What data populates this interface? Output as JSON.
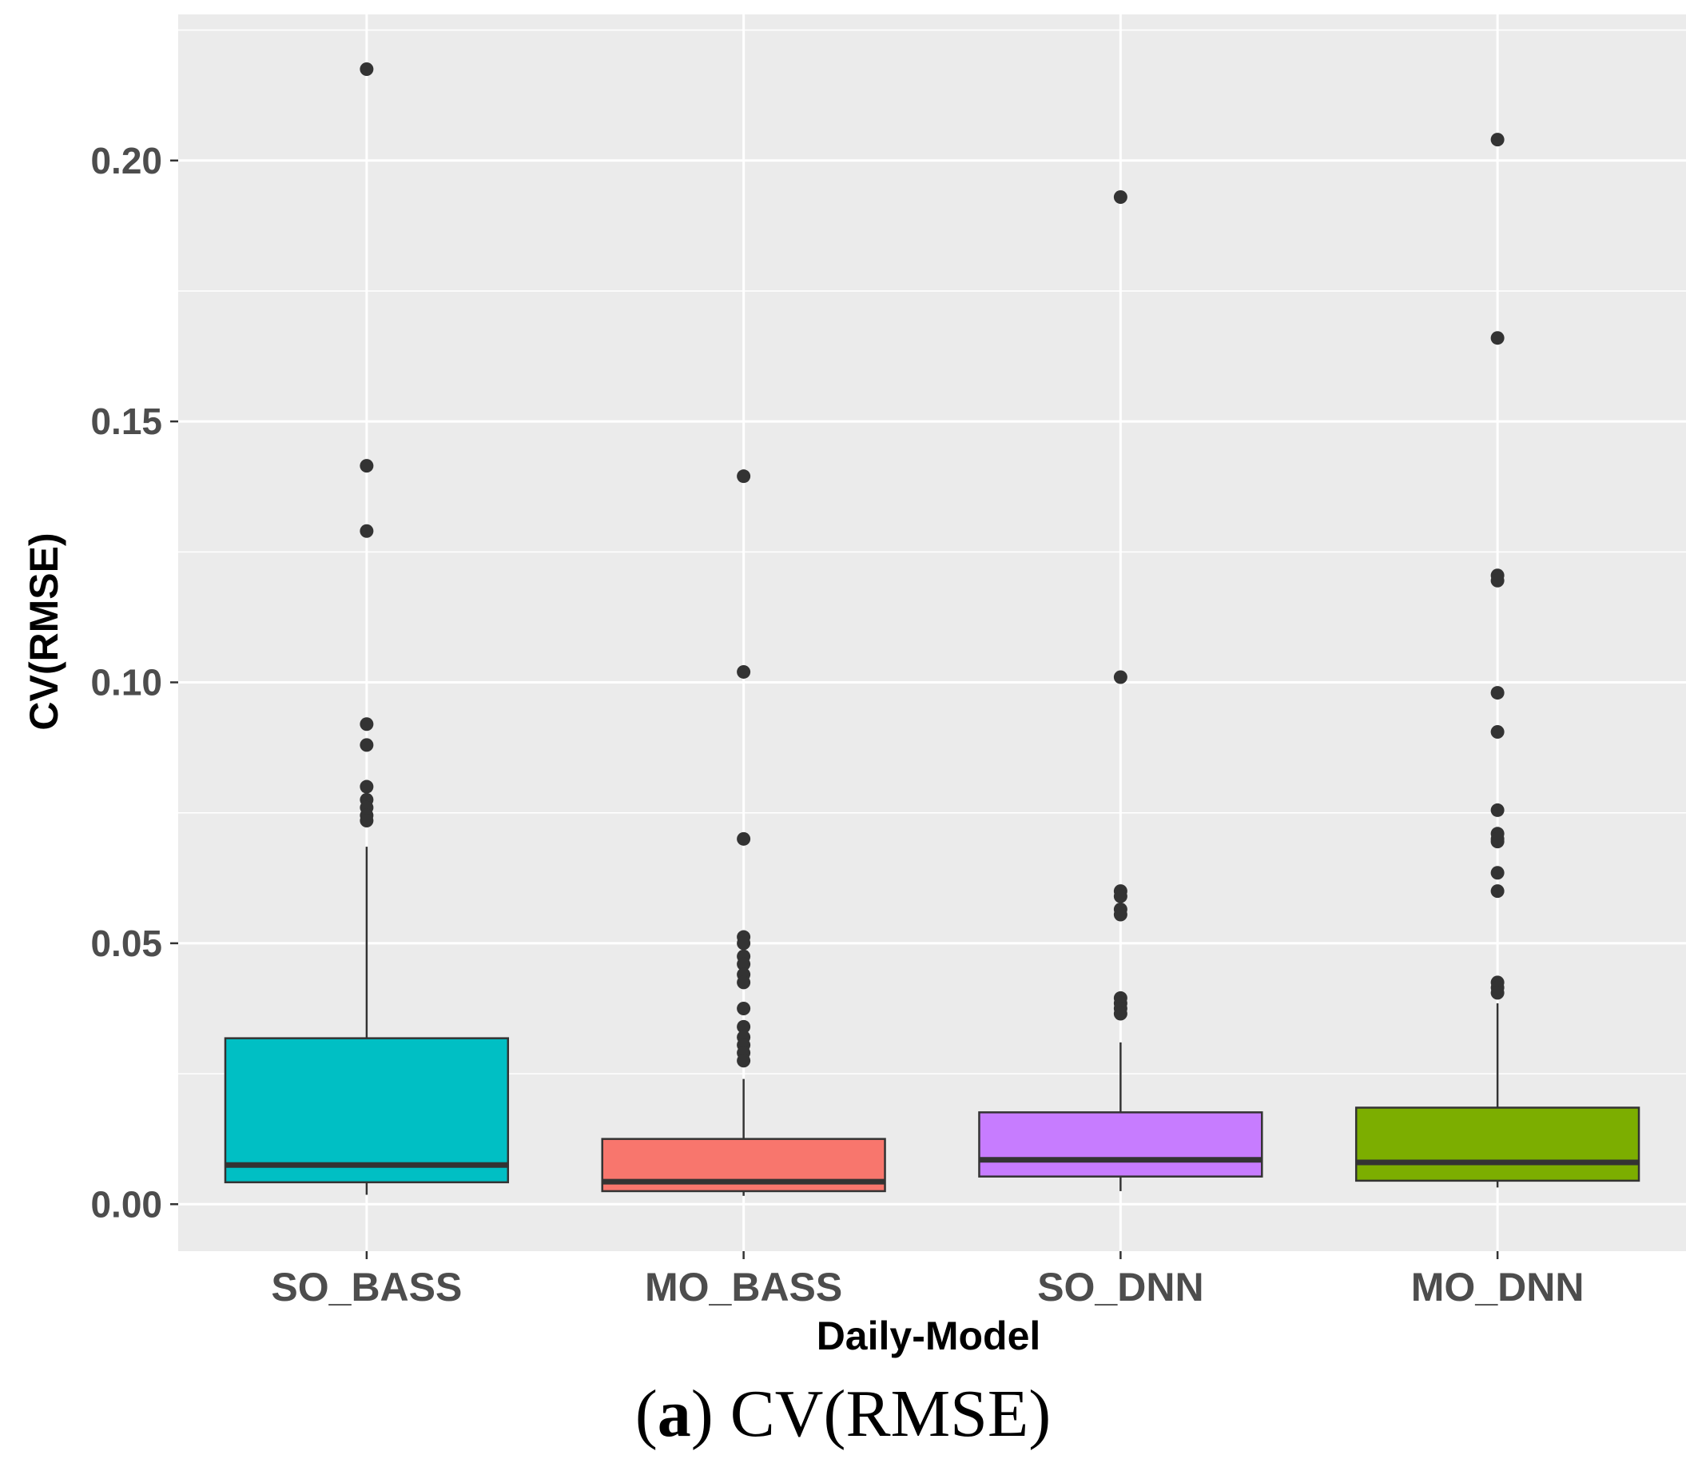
{
  "chart_data": {
    "type": "box",
    "title": "",
    "xlabel": "Daily-Model",
    "ylabel": "CV(RMSE)",
    "ylim": [
      -0.009,
      0.228
    ],
    "yticks": [
      0.0,
      0.05,
      0.1,
      0.15,
      0.2
    ],
    "ytick_labels": [
      "0.00",
      "0.05",
      "0.10",
      "0.15",
      "0.20"
    ],
    "grid": true,
    "background": "#ebebeb",
    "categories": [
      "SO_BASS",
      "MO_BASS",
      "SO_DNN",
      "MO_DNN"
    ],
    "boxes": [
      {
        "name": "SO_BASS",
        "color": "#00bfc4",
        "whisker_low": 0.0018,
        "q1": 0.0042,
        "median": 0.0075,
        "q3": 0.0318,
        "whisker_high": 0.0685,
        "outliers": [
          0.2175,
          0.1415,
          0.129,
          0.092,
          0.088,
          0.08,
          0.0775,
          0.076,
          0.0745,
          0.0735
        ]
      },
      {
        "name": "MO_BASS",
        "color": "#f8766d",
        "whisker_low": 0.0016,
        "q1": 0.0025,
        "median": 0.0043,
        "q3": 0.0125,
        "whisker_high": 0.024,
        "outliers": [
          0.1395,
          0.102,
          0.07,
          0.0512,
          0.05,
          0.0475,
          0.046,
          0.044,
          0.0425,
          0.0375,
          0.034,
          0.032,
          0.0305,
          0.029,
          0.0275
        ]
      },
      {
        "name": "SO_DNN",
        "color": "#c77cff",
        "whisker_low": 0.0025,
        "q1": 0.0053,
        "median": 0.0085,
        "q3": 0.0176,
        "whisker_high": 0.031,
        "outliers": [
          0.193,
          0.101,
          0.06,
          0.059,
          0.0565,
          0.0555,
          0.0395,
          0.0385,
          0.0375,
          0.0365
        ]
      },
      {
        "name": "MO_DNN",
        "color": "#7cae00",
        "whisker_low": 0.0032,
        "q1": 0.0045,
        "median": 0.008,
        "q3": 0.0185,
        "whisker_high": 0.0385,
        "outliers": [
          0.204,
          0.166,
          0.1205,
          0.1195,
          0.098,
          0.0905,
          0.0755,
          0.071,
          0.07,
          0.0695,
          0.0635,
          0.06,
          0.0425,
          0.0415,
          0.0405
        ]
      }
    ]
  },
  "caption": {
    "label": "a",
    "text": "CV(RMSE)"
  }
}
